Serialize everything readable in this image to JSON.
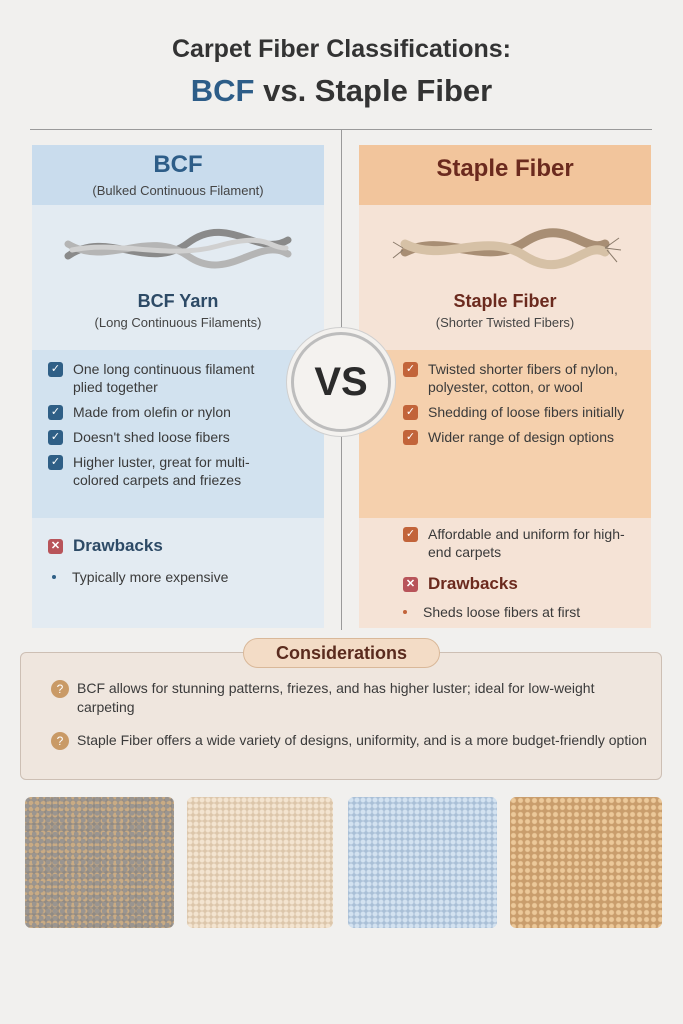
{
  "title": {
    "line1": "Carpet Fiber Classifications:",
    "bcf": "BCF",
    "rest": " vs. Staple Fiber"
  },
  "vs": "VS",
  "left": {
    "title": "BCF",
    "subtitle": "(Bulked Continuous Filament)",
    "yarn_name": "BCF Yarn",
    "yarn_sub": "(Long Continuous Filaments)",
    "items": [
      "One long continuous filament plied together",
      "Made from olefin or nylon",
      "Doesn't shed loose fibers",
      "Higher luster, great for multi-colored carpets and friezes"
    ],
    "drawbacks_label": "Drawbacks",
    "drawbacks": [
      "Typically more expensive"
    ]
  },
  "right": {
    "title": "Staple Fiber",
    "yarn_name": "Staple Fiber",
    "yarn_sub": "(Shorter Twisted Fibers)",
    "items": [
      "Twisted shorter fibers of nylon, polyester, cotton, or wool",
      "Shedding of loose fibers initially",
      "Wider range of design options",
      "Affordable and uniform for high-end carpets"
    ],
    "drawbacks_label": "Drawbacks",
    "drawbacks": [
      "Sheds loose fibers at first"
    ]
  },
  "considerations": {
    "label": "Considerations",
    "items": [
      "BCF allows for stunning patterns, friezes, and has higher luster; ideal for low-weight carpeting",
      "Staple Fiber offers a wide variety of designs, uniformity, and is a more budget-friendly option"
    ]
  },
  "colors": {
    "bcf": "#2d5d88",
    "staple": "#6b2a1e",
    "check_blue": "#2f5f86",
    "check_orange": "#c2643a"
  }
}
